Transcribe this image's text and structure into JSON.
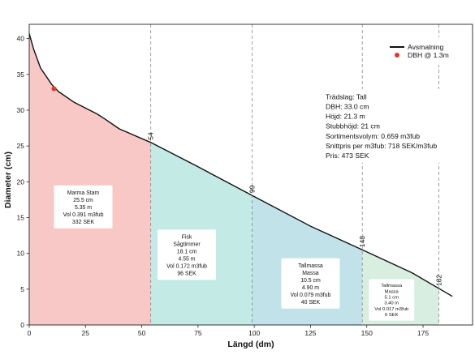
{
  "chart_data": {
    "type": "area",
    "xlabel": "Längd (dm)",
    "ylabel": "Diameter (cm)",
    "xlim": [
      0,
      197
    ],
    "ylim": [
      0,
      42
    ],
    "xticks": [
      "0",
      "25",
      "50",
      "75",
      "100",
      "125",
      "150",
      "175"
    ],
    "yticks": [
      "0",
      "5",
      "10",
      "15",
      "20",
      "25",
      "30",
      "35",
      "40"
    ],
    "grid": false,
    "legend_position": "top-right",
    "legend": {
      "line_label": "Avsmalning",
      "point_label": "DBH @ 1.3m"
    },
    "taper": {
      "x": [
        0,
        2,
        5,
        10,
        13,
        20,
        30,
        33,
        40,
        54,
        75,
        99,
        125,
        148,
        170,
        188
      ],
      "y": [
        40.7,
        38.5,
        35.9,
        33.6,
        32.6,
        31.1,
        29.5,
        28.9,
        27.4,
        25.5,
        22.1,
        18.1,
        13.8,
        10.5,
        7.3,
        4.0
      ]
    },
    "dbh_point": {
      "x": 11,
      "y": 33.0,
      "color": "#e03a2b"
    },
    "cut_positions": [
      54,
      99,
      148,
      182
    ],
    "segments": [
      {
        "start": 0,
        "end": 54,
        "color": "#f8c8c6",
        "label_box_center": [
          24,
          16.5
        ],
        "lines": [
          "Marma Stam",
          "25.5 cm",
          "5.35 m",
          "Vol 0.391 m3fub",
          "332 SEK"
        ]
      },
      {
        "start": 54,
        "end": 99,
        "color": "#c4eae6",
        "label_box_center": [
          70,
          9.8
        ],
        "lines": [
          "Fisk",
          "Sågtimmer",
          "18.1 cm",
          "4.55 m",
          "Vol 0.172 m3fub",
          "96 SEK"
        ]
      },
      {
        "start": 99,
        "end": 148,
        "color": "#c2e2ea",
        "label_box_center": [
          125,
          5.8
        ],
        "lines": [
          "Tallmassa",
          "Massa",
          "10.5 cm",
          "4.90 m",
          "Vol 0.079 m3fub",
          "40 SEK"
        ]
      },
      {
        "start": 148,
        "end": 182,
        "color": "#d7eee0",
        "label_box_center": [
          161,
          3.5
        ],
        "lines": [
          "Tallmassa",
          "Massa",
          "5.1 cm",
          "3.40 m",
          "Vol 0.017 m3fub",
          "6 SEK"
        ]
      }
    ],
    "info_box": {
      "lines": [
        "Trädslag: Tall",
        "DBH: 33.0 cm",
        "Höjd: 21.3 m",
        "Stubbhöjd: 21 cm",
        "Sortimentsvolym: 0.659 m3fub",
        "Snittpris per m3fub: 718 SEK/m3fub",
        "Pris: 473 SEK"
      ]
    }
  }
}
